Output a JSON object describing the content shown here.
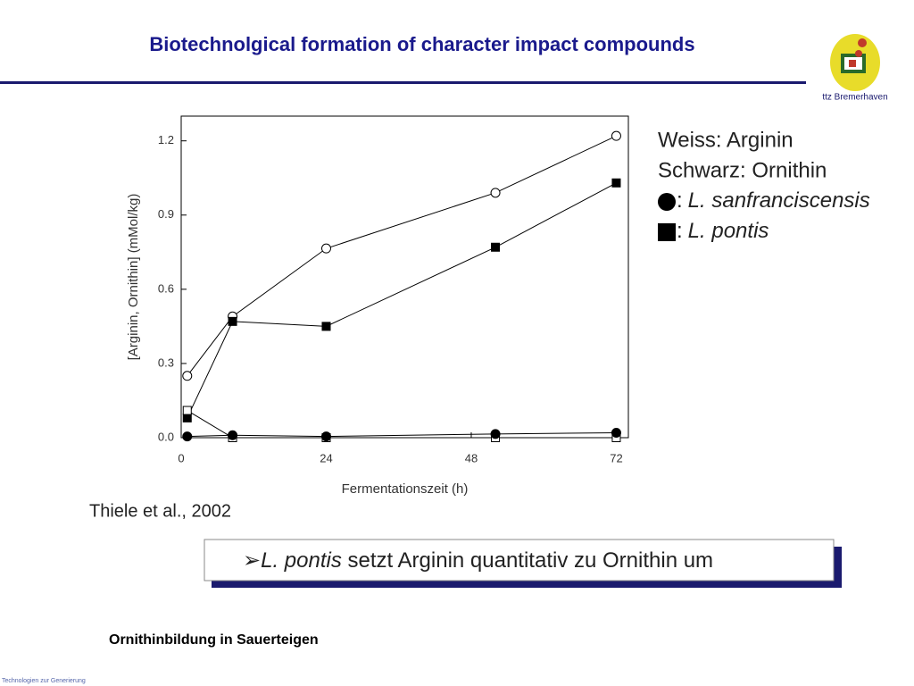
{
  "header": {
    "title": "Biotechnolgical formation of character impact compounds",
    "logo_text": "ttz Bremerhaven"
  },
  "chart_data": {
    "type": "line",
    "ylabel": "[Arginin, Ornithin] (mMol/kg)",
    "xlabel": "Fermentationszeit (h)",
    "x": [
      1,
      8.5,
      24,
      52,
      72
    ],
    "xlim": [
      0,
      74
    ],
    "xticks": [
      0,
      24,
      48,
      72
    ],
    "ylim": [
      0,
      1.3
    ],
    "yticks": [
      {
        "value": 0,
        "label": "0.0"
      },
      0.3,
      0.6,
      0.9,
      1.2
    ],
    "color": "#000000",
    "series": [
      {
        "marker": "open-circle",
        "values": [
          0.25,
          0.49,
          0.765,
          0.99,
          1.22
        ]
      },
      {
        "marker": "filled-square",
        "values": [
          0.08,
          0.47,
          0.45,
          0.77,
          1.03
        ]
      },
      {
        "marker": "open-square",
        "values": [
          0.11,
          0,
          0,
          0,
          0
        ]
      },
      {
        "marker": "filled-circle",
        "values": [
          0.005,
          0.01,
          0.005,
          0.015,
          0.02
        ]
      }
    ],
    "legend": [
      "Weiss: Arginin",
      "Schwarz: Ornithin"
    ],
    "species_legend": [
      {
        "sep": ":",
        "name": "L. sanfranciscensis"
      },
      {
        "sep": ":",
        "name": "L. pontis"
      }
    ]
  },
  "citation": "Thiele et al., 2002",
  "statement": {
    "italic": "L. pontis",
    "rest": " setzt Arginin quantitativ zu Ornithin um"
  },
  "caption": "Ornithinbildung in Sauerteigen",
  "footer": "Technologien zur Generierung"
}
